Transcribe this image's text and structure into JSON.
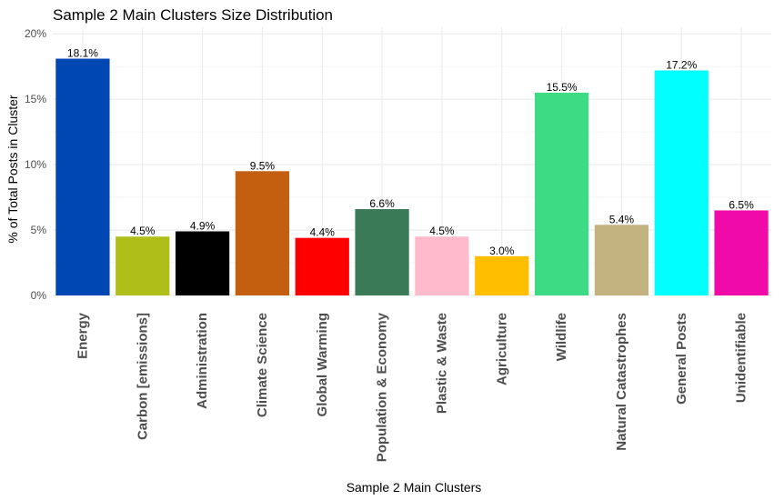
{
  "chart_data": {
    "type": "bar",
    "title": "Sample 2 Main Clusters Size Distribution",
    "xlabel": "Sample 2 Main Clusters",
    "ylabel": "% of Total Posts in Cluster",
    "ylim": [
      0,
      20.5
    ],
    "yticks": [
      0,
      5,
      10,
      15,
      20
    ],
    "ytick_labels": [
      "0%",
      "5%",
      "10%",
      "15%",
      "20%"
    ],
    "grid": true,
    "legend": "none",
    "categories": [
      "Energy",
      "Carbon [emissions]",
      "Administration",
      "Climate Science",
      "Global Warming",
      "Population & Economy",
      "Plastic & Waste",
      "Agriculture",
      "Wildlife",
      "Natural Catastrophes",
      "General Posts",
      "Unidentifiable"
    ],
    "values": [
      18.1,
      4.5,
      4.9,
      9.5,
      4.4,
      6.6,
      4.5,
      3.0,
      15.5,
      5.4,
      17.2,
      6.5
    ],
    "value_labels": [
      "18.1%",
      "4.5%",
      "4.9%",
      "9.5%",
      "4.4%",
      "6.6%",
      "4.5%",
      "3.0%",
      "15.5%",
      "5.4%",
      "17.2%",
      "6.5%"
    ],
    "colors": [
      "#0047b3",
      "#b0be1a",
      "#000000",
      "#c55f10",
      "#ff0000",
      "#3a7a57",
      "#ffbbcc",
      "#ffbf00",
      "#3ddc84",
      "#c2b280",
      "#00ffff",
      "#f00aa8"
    ]
  }
}
